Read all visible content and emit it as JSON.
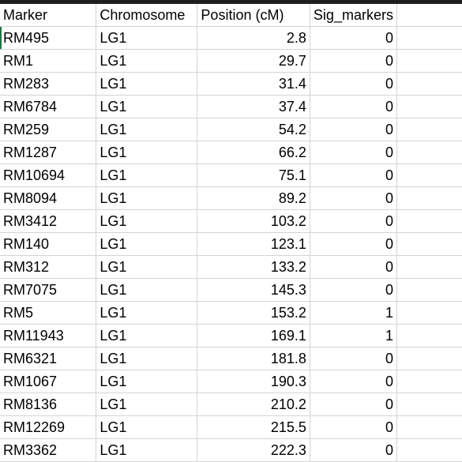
{
  "headers": {
    "marker": "Marker",
    "chromosome": "Chromosome",
    "position": "Position (cM)",
    "sig": "Sig_markers"
  },
  "rows": [
    {
      "marker": "RM495",
      "chromosome": "LG1",
      "position": "2.8",
      "sig": "0"
    },
    {
      "marker": "RM1",
      "chromosome": "LG1",
      "position": "29.7",
      "sig": "0"
    },
    {
      "marker": "RM283",
      "chromosome": "LG1",
      "position": "31.4",
      "sig": "0"
    },
    {
      "marker": "RM6784",
      "chromosome": "LG1",
      "position": "37.4",
      "sig": "0"
    },
    {
      "marker": "RM259",
      "chromosome": "LG1",
      "position": "54.2",
      "sig": "0"
    },
    {
      "marker": "RM1287",
      "chromosome": "LG1",
      "position": "66.2",
      "sig": "0"
    },
    {
      "marker": "RM10694",
      "chromosome": "LG1",
      "position": "75.1",
      "sig": "0"
    },
    {
      "marker": "RM8094",
      "chromosome": "LG1",
      "position": "89.2",
      "sig": "0"
    },
    {
      "marker": "RM3412",
      "chromosome": "LG1",
      "position": "103.2",
      "sig": "0"
    },
    {
      "marker": "RM140",
      "chromosome": "LG1",
      "position": "123.1",
      "sig": "0"
    },
    {
      "marker": "RM312",
      "chromosome": "LG1",
      "position": "133.2",
      "sig": "0"
    },
    {
      "marker": "RM7075",
      "chromosome": "LG1",
      "position": "145.3",
      "sig": "0"
    },
    {
      "marker": "RM5",
      "chromosome": "LG1",
      "position": "153.2",
      "sig": "1"
    },
    {
      "marker": "RM11943",
      "chromosome": "LG1",
      "position": "169.1",
      "sig": "1"
    },
    {
      "marker": "RM6321",
      "chromosome": "LG1",
      "position": "181.8",
      "sig": "0"
    },
    {
      "marker": "RM1067",
      "chromosome": "LG1",
      "position": "190.3",
      "sig": "0"
    },
    {
      "marker": "RM8136",
      "chromosome": "LG1",
      "position": "210.2",
      "sig": "0"
    },
    {
      "marker": "RM12269",
      "chromosome": "LG1",
      "position": "215.5",
      "sig": "0"
    },
    {
      "marker": "RM3362",
      "chromosome": "LG1",
      "position": "222.3",
      "sig": "0"
    }
  ],
  "colors": {
    "gridline": "#d4d4d4",
    "text": "#000000",
    "topbar": "#1f1f1f"
  }
}
